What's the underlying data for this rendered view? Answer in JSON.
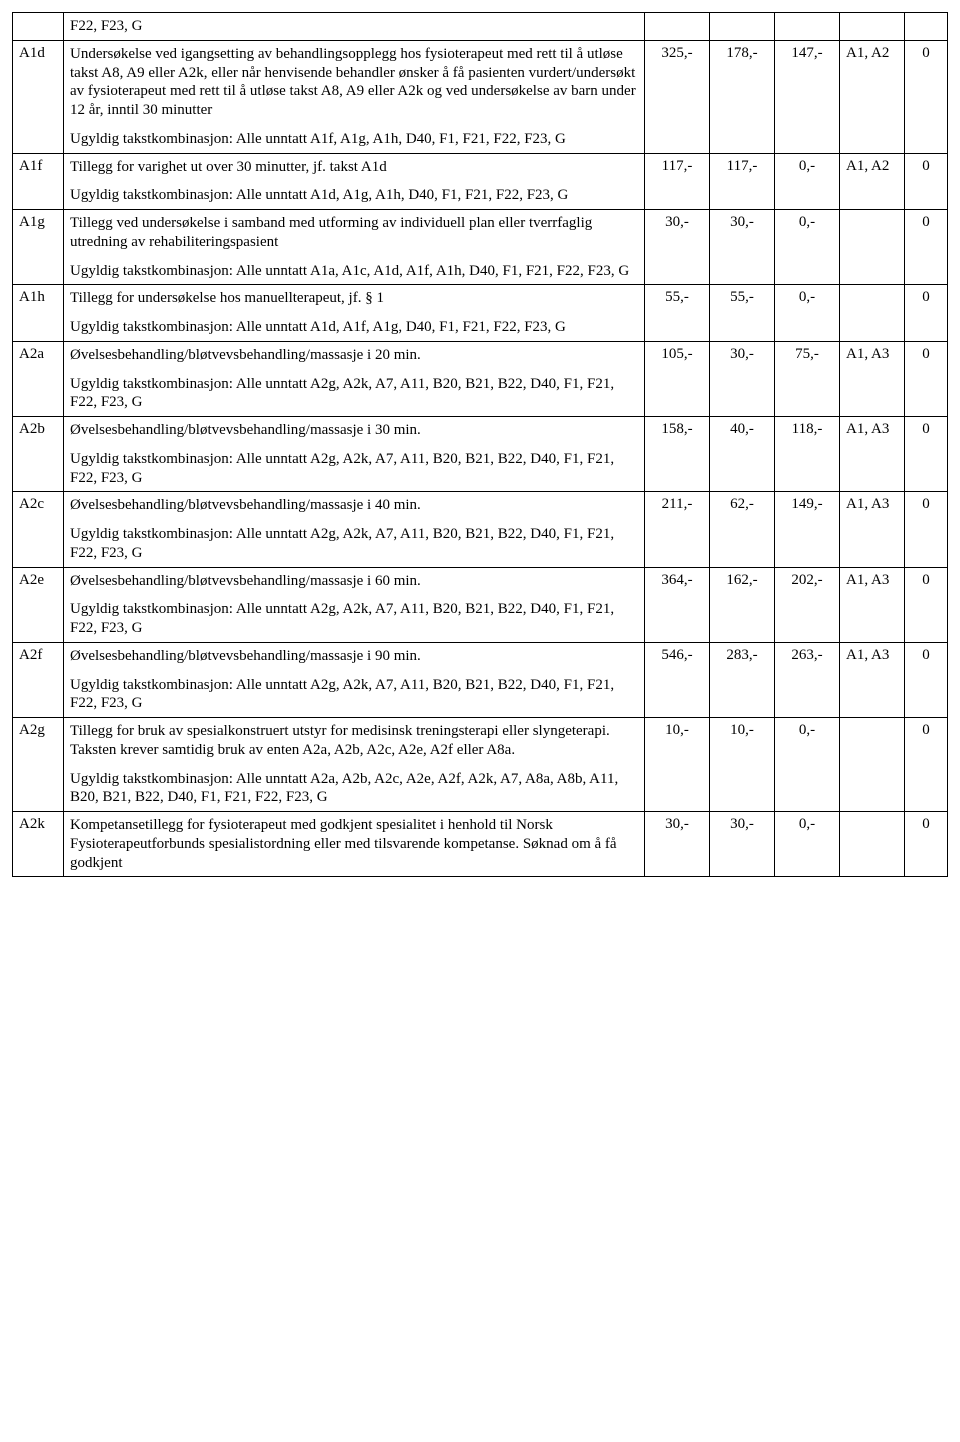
{
  "table": {
    "columns": [
      {
        "key": "code",
        "class": "code-col"
      },
      {
        "key": "desc",
        "class": "desc-col"
      },
      {
        "key": "hon",
        "class": "num-col"
      },
      {
        "key": "ref",
        "class": "num-col"
      },
      {
        "key": "egen",
        "class": "num-col"
      },
      {
        "key": "merk",
        "class": "merk-col"
      },
      {
        "key": "rep",
        "class": "rep-col"
      }
    ],
    "rows": [
      {
        "code": "",
        "desc": [
          "F22, F23, G"
        ],
        "hon": "",
        "ref": "",
        "egen": "",
        "merk": "",
        "rep": ""
      },
      {
        "code": "A1d",
        "desc": [
          "Undersøkelse ved igangsetting av behandlingsopplegg hos fysioterapeut med rett til å utløse takst A8, A9 eller A2k, eller når henvisende behandler ønsker å få pasienten vurdert/undersøkt av fysioterapeut med rett til å utløse takst A8,  A9 eller A2k og ved undersøkelse av barn under 12 år, inntil 30 minutter",
          "Ugyldig takstkombinasjon: Alle unntatt A1f, A1g, A1h, D40, F1, F21, F22, F23, G"
        ],
        "hon": "325,-",
        "ref": "178,-",
        "egen": "147,-",
        "merk": "A1, A2",
        "rep": "0"
      },
      {
        "code": "A1f",
        "desc": [
          "Tillegg for varighet ut over 30 minutter, jf. takst A1d",
          "Ugyldig takstkombinasjon: Alle unntatt A1d, A1g, A1h, D40, F1, F21, F22, F23, G"
        ],
        "hon": "117,-",
        "ref": "117,-",
        "egen": "0,-",
        "merk": "A1, A2",
        "rep": "0"
      },
      {
        "code": "A1g",
        "desc": [
          "Tillegg ved undersøkelse i samband med utforming av individuell plan eller tverrfaglig utredning av rehabiliteringspasient",
          "Ugyldig takstkombinasjon: Alle unntatt A1a, A1c, A1d, A1f, A1h, D40, F1, F21, F22, F23, G"
        ],
        "hon": "30,-",
        "ref": "30,-",
        "egen": "0,-",
        "merk": "",
        "rep": "0"
      },
      {
        "code": "A1h",
        "desc": [
          "Tillegg for undersøkelse hos manuellterapeut, jf. § 1",
          "Ugyldig takstkombinasjon: Alle unntatt A1d, A1f, A1g, D40, F1, F21, F22, F23, G"
        ],
        "hon": "55,-",
        "ref": "55,-",
        "egen": "0,-",
        "merk": "",
        "rep": "0"
      },
      {
        "code": "A2a",
        "desc": [
          "Øvelsesbehandling/bløtvevsbehandling/massasje i 20 min.",
          "Ugyldig takstkombinasjon: Alle unntatt A2g, A2k, A7, A11, B20, B21, B22, D40, F1, F21, F22, F23, G"
        ],
        "hon": "105,-",
        "ref": "30,-",
        "egen": "75,-",
        "merk": "A1, A3",
        "rep": "0"
      },
      {
        "code": "A2b",
        "desc": [
          "Øvelsesbehandling/bløtvevsbehandling/massasje i 30 min.",
          "Ugyldig takstkombinasjon: Alle unntatt A2g, A2k, A7, A11, B20, B21, B22, D40, F1, F21, F22, F23, G"
        ],
        "hon": "158,-",
        "ref": "40,-",
        "egen": "118,-",
        "merk": "A1, A3",
        "rep": "0"
      },
      {
        "code": "A2c",
        "desc": [
          "Øvelsesbehandling/bløtvevsbehandling/massasje i 40 min.",
          "Ugyldig takstkombinasjon: Alle unntatt A2g, A2k, A7, A11, B20, B21, B22, D40, F1, F21, F22, F23, G"
        ],
        "hon": "211,-",
        "ref": "62,-",
        "egen": "149,-",
        "merk": "A1, A3",
        "rep": "0"
      },
      {
        "code": "A2e",
        "desc": [
          "Øvelsesbehandling/bløtvevsbehandling/massasje i 60 min.",
          "Ugyldig takstkombinasjon: Alle unntatt A2g, A2k, A7, A11, B20, B21, B22, D40, F1, F21, F22, F23, G"
        ],
        "hon": "364,-",
        "ref": "162,-",
        "egen": "202,-",
        "merk": "A1, A3",
        "rep": "0"
      },
      {
        "code": "A2f",
        "desc": [
          "Øvelsesbehandling/bløtvevsbehandling/massasje i 90 min.",
          "Ugyldig takstkombinasjon: Alle unntatt A2g, A2k, A7, A11, B20, B21, B22, D40, F1, F21, F22, F23, G"
        ],
        "hon": "546,-",
        "ref": "283,-",
        "egen": "263,-",
        "merk": "A1, A3",
        "rep": "0"
      },
      {
        "code": "A2g",
        "desc": [
          "Tillegg for bruk av spesialkonstruert utstyr for medisinsk treningsterapi eller slyngeterapi. Taksten krever samtidig bruk av enten A2a, A2b, A2c, A2e, A2f eller A8a.",
          "Ugyldig takstkombinasjon: Alle unntatt A2a, A2b, A2c, A2e, A2f, A2k, A7, A8a, A8b, A11, B20, B21, B22, D40, F1, F21, F22, F23, G"
        ],
        "hon": "10,-",
        "ref": "10,-",
        "egen": "0,-",
        "merk": "",
        "rep": "0"
      },
      {
        "code": "A2k",
        "desc": [
          "Kompetansetillegg for fysioterapeut med godkjent spesialitet i henhold til Norsk Fysioterapeutforbunds spesialistordning eller med tilsvarende kompetanse. Søknad om å få godkjent"
        ],
        "hon": "30,-",
        "ref": "30,-",
        "egen": "0,-",
        "merk": "",
        "rep": "0"
      }
    ]
  }
}
